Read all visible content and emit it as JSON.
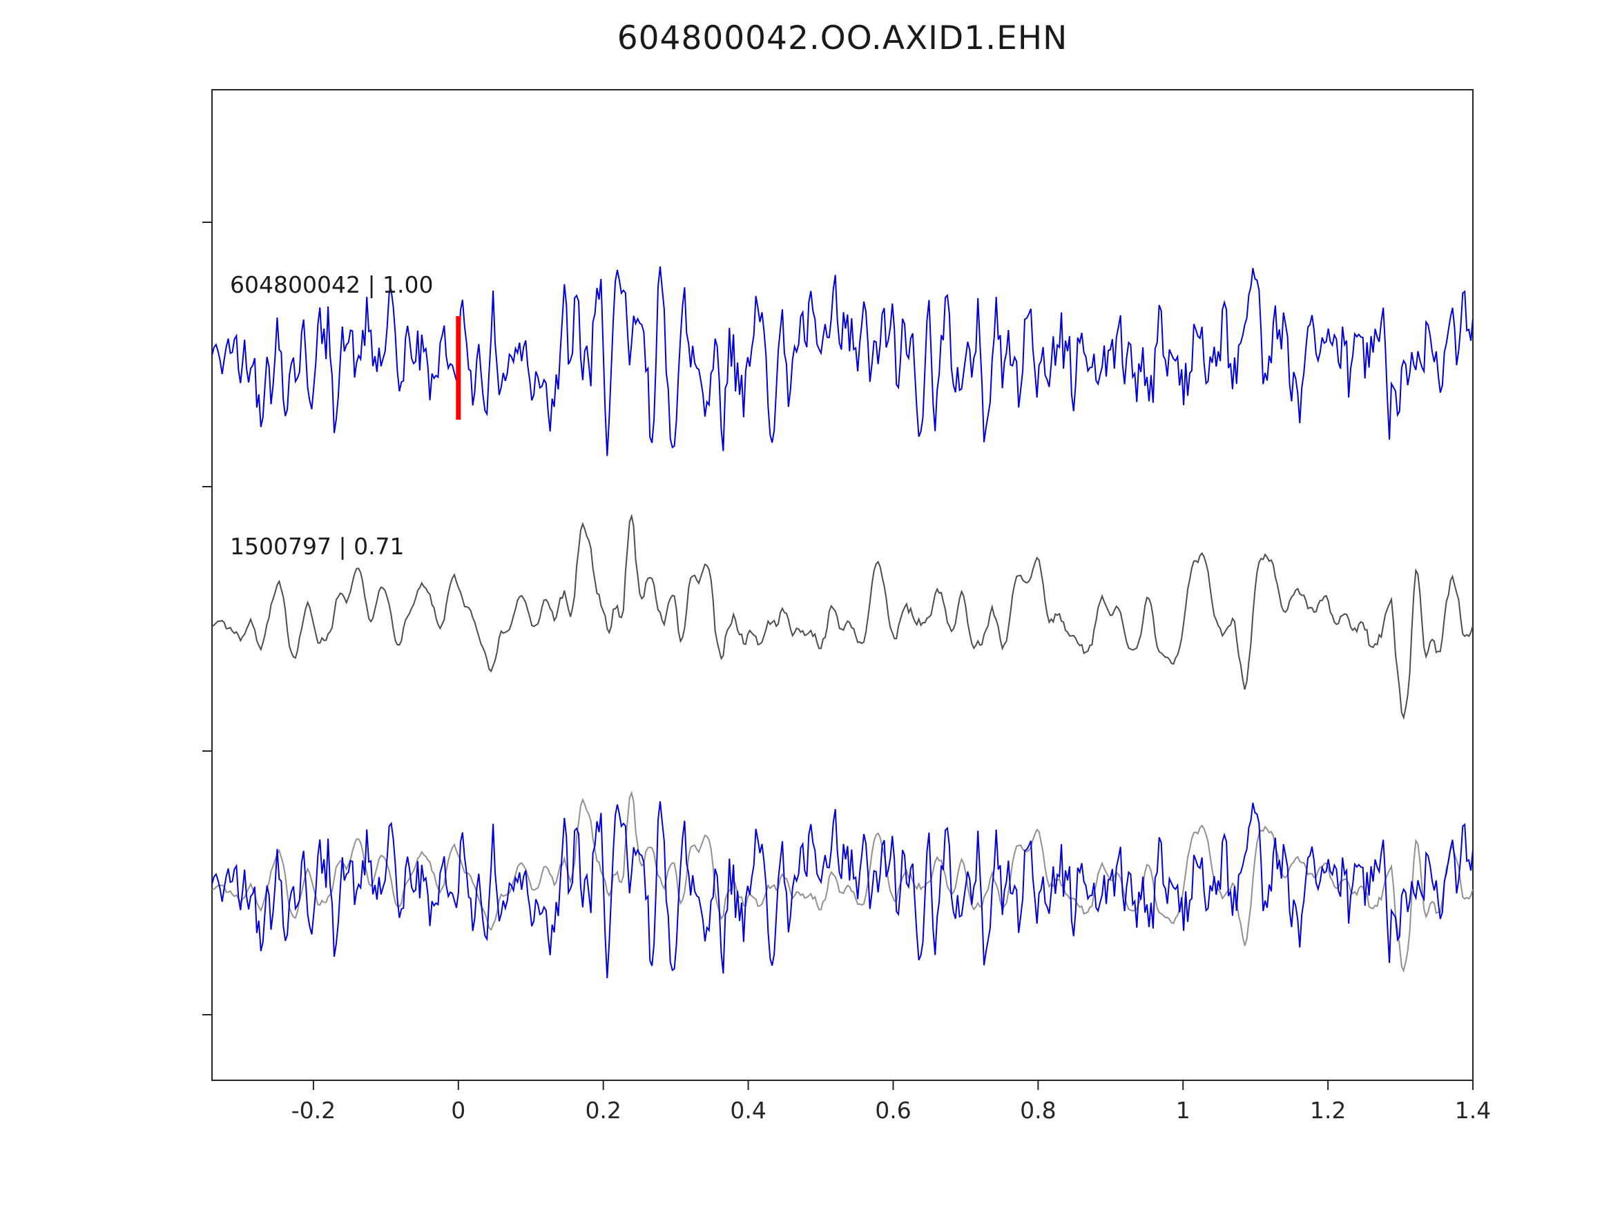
{
  "chart_data": {
    "type": "line",
    "title": "604800042.OO.AXID1.EHN",
    "xlabel": "",
    "ylabel": "",
    "grid": false,
    "legend": "none",
    "xlim": [
      -0.34,
      1.4
    ],
    "x_ticks": [
      -0.2,
      0,
      0.2,
      0.4,
      0.6,
      0.8,
      1,
      1.2,
      1.4
    ],
    "x_tick_labels": [
      "-0.2",
      "0",
      "0.2",
      "0.4",
      "0.6",
      "0.8",
      "1",
      "1.2",
      "1.4"
    ],
    "axis_color": "#262626",
    "rows": [
      "top",
      "middle",
      "bottom"
    ],
    "traces": [
      {
        "id": "604800042",
        "correlation": "1.00",
        "label": "604800042 | 1.00",
        "color": "#0000dd",
        "row": "top",
        "description": "high-frequency seismic waveform, roughly uniform amplitude across full window",
        "synthesis": {
          "seed": 42,
          "points": 620,
          "smooth_passes": 1,
          "smooth_window": 3,
          "amplitude": 150,
          "env_base": 0.85,
          "taper": 0.05,
          "bumps": [
            {
              "x": 0.18,
              "s": 0.05,
              "a": 0.25
            },
            {
              "x": 0.31,
              "s": 0.05,
              "a": 0.3
            },
            {
              "x": 0.55,
              "s": 0.25,
              "a": 0.08
            }
          ]
        }
      },
      {
        "id": "1500797",
        "correlation": "0.71",
        "label": "1500797 | 0.71",
        "color": "#4d4d4d",
        "row": "middle",
        "description": "lower-frequency waveform, quiet background with large bursts near x=0.2, x=0.63, x=1.07 and x=1.31",
        "synthesis": {
          "seed": 7,
          "points": 620,
          "smooth_passes": 2,
          "smooth_window": 5,
          "amplitude": 170,
          "env_base": 0.45,
          "taper": 0.03,
          "bumps": [
            {
              "x": 0.2,
              "s": 0.035,
              "a": 1.1
            },
            {
              "x": 0.33,
              "s": 0.08,
              "a": 0.3
            },
            {
              "x": 0.63,
              "s": 0.03,
              "a": 0.6
            },
            {
              "x": 0.79,
              "s": 0.05,
              "a": 0.25
            },
            {
              "x": 1.07,
              "s": 0.04,
              "a": 0.35
            },
            {
              "x": 1.31,
              "s": 0.035,
              "a": 0.85
            }
          ]
        }
      }
    ],
    "overlay": {
      "row": "bottom",
      "description": "both waveforms superimposed on the bottom row",
      "components": [
        {
          "ref": 1,
          "amplitude": 150,
          "color": "#909090"
        },
        {
          "ref": 0,
          "amplitude": 140,
          "color": "#0000dd"
        }
      ]
    },
    "marker": {
      "x": 0,
      "color": "#ff0000",
      "row": "top"
    }
  }
}
